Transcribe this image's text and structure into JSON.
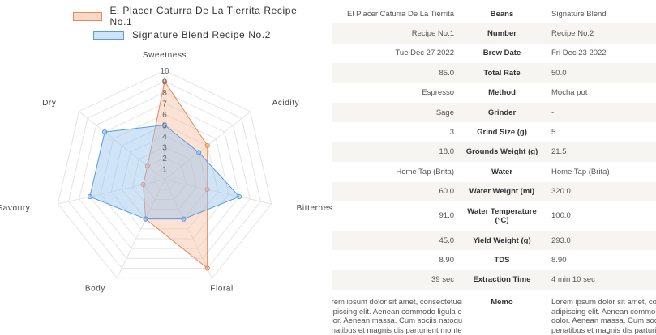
{
  "chart_data": {
    "type": "radar",
    "axes": [
      "Sweetness",
      "Acidity",
      "Bitterness",
      "Floral",
      "Body",
      "Savoury",
      "Dry"
    ],
    "rlim": [
      0,
      10
    ],
    "ticks": [
      "1",
      "2",
      "3",
      "4",
      "5",
      "6",
      "7",
      "8",
      "9",
      "10"
    ],
    "series": [
      {
        "name": "El Placer Caturra De La Tierrita Recipe No.1",
        "values": [
          9,
          5,
          4,
          9,
          4,
          2,
          2
        ],
        "color": "#e8875a",
        "fill": "rgba(246,190,160,0.45)"
      },
      {
        "name": "Signature Blend Recipe No.2",
        "values": [
          5,
          4,
          7,
          4,
          4,
          7,
          7
        ],
        "color": "#5a9be0",
        "fill": "rgba(150,195,240,0.45)"
      }
    ]
  },
  "table": {
    "rows": [
      {
        "left": "El Placer Caturra De La Tierrita",
        "label": "Beans",
        "right": "Signature Blend"
      },
      {
        "left": "Recipe No.1",
        "label": "Number",
        "right": "Recipe No.2"
      },
      {
        "left": "Tue Dec 27 2022",
        "label": "Brew Date",
        "right": "Fri Dec 23 2022"
      },
      {
        "left": "85.0",
        "label": "Total Rate",
        "right": "50.0"
      },
      {
        "left": "Espresso",
        "label": "Method",
        "right": "Mocha pot"
      },
      {
        "left": "Sage",
        "label": "Grinder",
        "right": "-"
      },
      {
        "left": "3",
        "label": "Grind Size (g)",
        "right": "5"
      },
      {
        "left": "18.0",
        "label": "Grounds Weight (g)",
        "right": "21.5"
      },
      {
        "left": "Home Tap (Brita)",
        "label": "Water",
        "right": "Home Tap (Brita)"
      },
      {
        "left": "60.0",
        "label": "Water Weight (ml)",
        "right": "320.0"
      },
      {
        "left": "91.0",
        "label": "Water Temperature (°C)",
        "right": "100.0"
      },
      {
        "left": "45.0",
        "label": "Yield Weight (g)",
        "right": "293.0"
      },
      {
        "left": "8.90",
        "label": "TDS",
        "right": "8.90"
      },
      {
        "left": "39 sec",
        "label": "Extraction Time",
        "right": "4 min 10 sec"
      }
    ],
    "memo_label": "Memo",
    "memo_left": [
      "Lorem ipsum dolor sit amet, consectetuer",
      "adipiscing elit. Aenean commodo ligula eget",
      "dolor. Aenean massa. Cum sociis natoque",
      "penatibus et magnis dis parturient montes,"
    ],
    "memo_right": [
      "Lorem ipsum dolor sit amet, consectetuer",
      "adipiscing elit. Aenean commodo ligula eget",
      "dolor. Aenean massa. Cum sociis natoque",
      "penatibus et magnis dis parturient montes,"
    ]
  }
}
